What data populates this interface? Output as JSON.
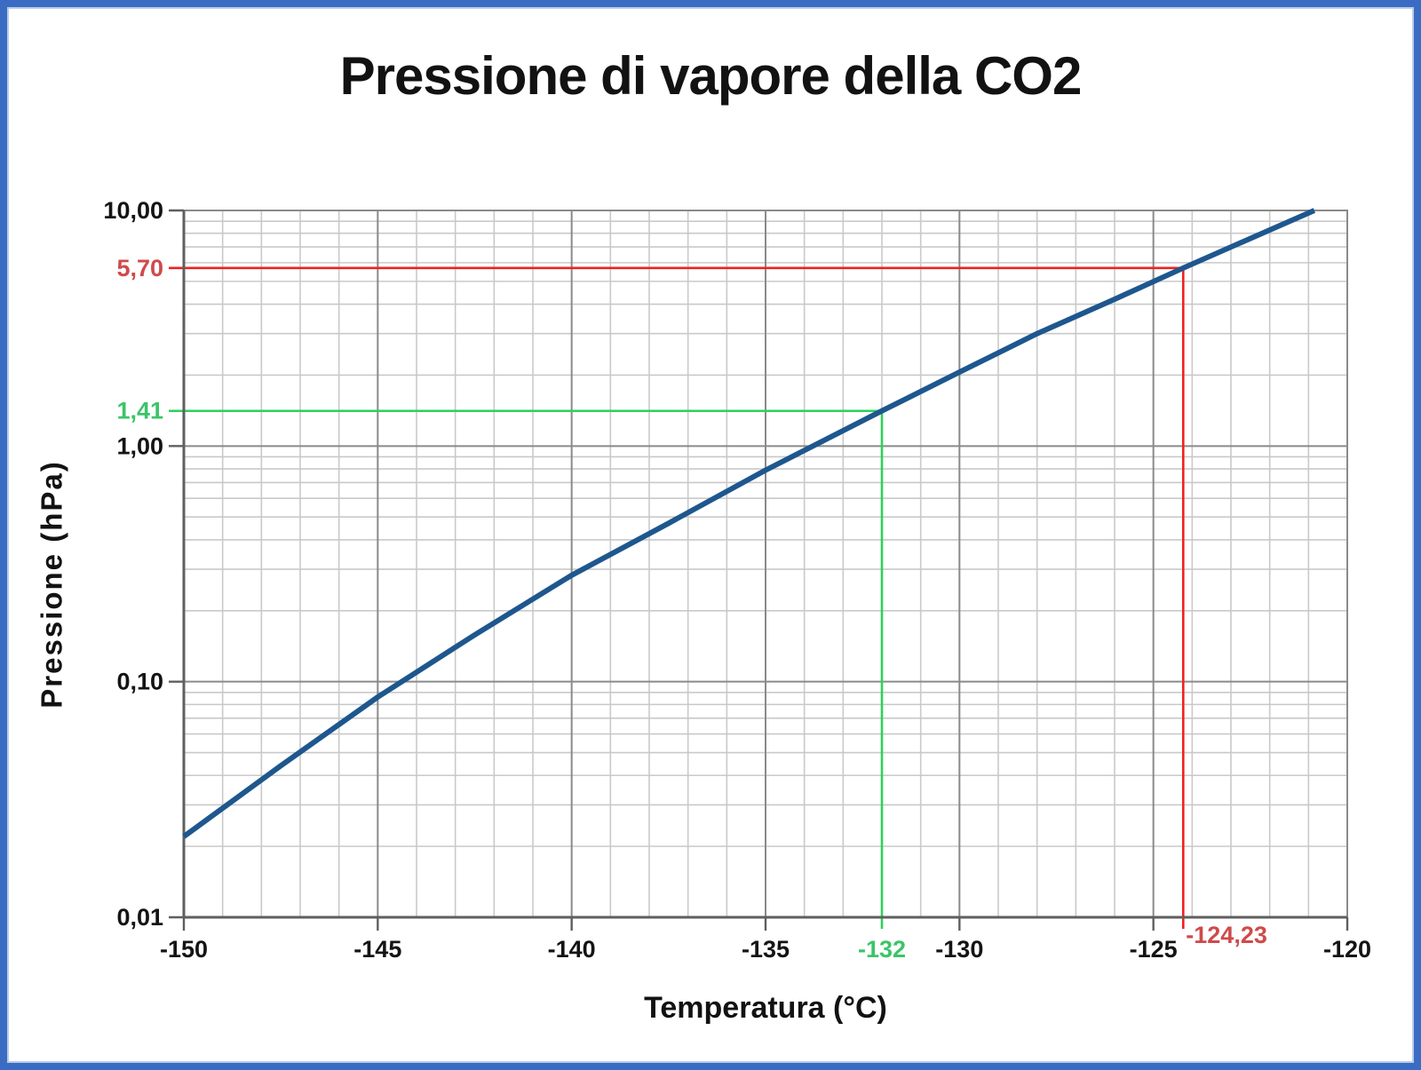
{
  "title": "Pressione di vapore della CO2",
  "window": {
    "background": "#ffffff",
    "frame_color": "#3a6cc3",
    "frame_inner_color": "#b9cce9"
  },
  "chart_data": {
    "type": "line",
    "title": "Pressione di vapore della CO2",
    "xlabel": "Temperatura (°C)",
    "ylabel": "Pressione (hPa)",
    "x_axis": {
      "scale": "linear",
      "min": -150,
      "max": -120,
      "major_step": 5,
      "minor_step": 1,
      "ticks": [
        {
          "value": -150,
          "label": "-150"
        },
        {
          "value": -145,
          "label": "-145"
        },
        {
          "value": -140,
          "label": "-140"
        },
        {
          "value": -135,
          "label": "-135"
        },
        {
          "value": -130,
          "label": "-130"
        },
        {
          "value": -125,
          "label": "-125"
        },
        {
          "value": -120,
          "label": "-120"
        }
      ]
    },
    "y_axis": {
      "scale": "log",
      "min": 0.01,
      "max": 10,
      "ticks": [
        {
          "value": 10,
          "label": "10,00"
        },
        {
          "value": 1,
          "label": "1,00"
        },
        {
          "value": 0.1,
          "label": "0,10"
        },
        {
          "value": 0.01,
          "label": "0,01"
        }
      ]
    },
    "grid": {
      "minor_color": "#c9c9c9",
      "major_color": "#8a8a8a",
      "axis_color": "#5f5f5f",
      "tick_label_color": "#141414"
    },
    "series": [
      {
        "name": "pressione-vapore-co2",
        "color": "#1e578e",
        "width": 6,
        "points": [
          [
            -150,
            0.022
          ],
          [
            -147.5,
            0.044
          ],
          [
            -145,
            0.086
          ],
          [
            -142.5,
            0.158
          ],
          [
            -140,
            0.283
          ],
          [
            -137.5,
            0.47
          ],
          [
            -135,
            0.79
          ],
          [
            -132,
            1.41
          ],
          [
            -130,
            2.06
          ],
          [
            -128,
            3.0
          ],
          [
            -126,
            4.2
          ],
          [
            -124.23,
            5.7
          ],
          [
            -122.5,
            7.6
          ],
          [
            -120.85,
            10.0
          ]
        ]
      }
    ],
    "annotations": [
      {
        "name": "red-reading",
        "x": -124.23,
        "y": 5.7,
        "x_label": "-124,23",
        "y_label": "5,70",
        "line_color": "#f02121",
        "label_color": "#cf4a4a",
        "x_label_placement": "beside"
      },
      {
        "name": "green-reading",
        "x": -132,
        "y": 1.41,
        "x_label": "-132",
        "y_label": "1,41",
        "line_color": "#2fd05c",
        "label_color": "#3cc468",
        "x_label_placement": "below"
      }
    ]
  }
}
